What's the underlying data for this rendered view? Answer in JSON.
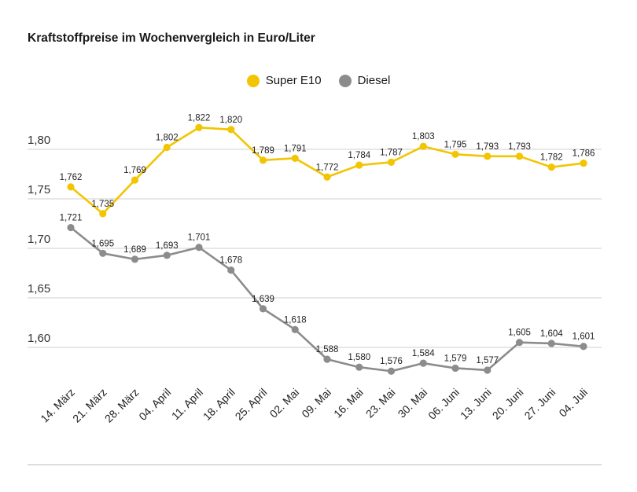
{
  "chart_data": {
    "type": "line",
    "title": "Kraftstoffpreise im Wochenvergleich in Euro/Liter",
    "xlabel": "",
    "ylabel": "",
    "ylim": [
      1.575,
      1.84
    ],
    "yticks": [
      "1,60",
      "1,65",
      "1,70",
      "1,75",
      "1,80"
    ],
    "ytick_values": [
      1.6,
      1.65,
      1.7,
      1.75,
      1.8
    ],
    "grid": true,
    "legend_position": "top-center",
    "categories": [
      "14. März",
      "21. März",
      "28. März",
      "04. April",
      "11. April",
      "18. April",
      "25. April",
      "02. Mai",
      "09. Mai",
      "16. Mai",
      "23. Mai",
      "30. Mai",
      "06. Juni",
      "13. Juni",
      "20. Juni",
      "27. Juni",
      "04. Juli"
    ],
    "series": [
      {
        "name": "Super E10",
        "color": "#f2c500",
        "values": [
          1.762,
          1.735,
          1.769,
          1.802,
          1.822,
          1.82,
          1.789,
          1.791,
          1.772,
          1.784,
          1.787,
          1.803,
          1.795,
          1.793,
          1.793,
          1.782,
          1.786
        ],
        "labels": [
          "1,762",
          "1,735",
          "1,769",
          "1,802",
          "1,822",
          "1,820",
          "1,789",
          "1,791",
          "1,772",
          "1,784",
          "1,787",
          "1,803",
          "1,795",
          "1,793",
          "1,793",
          "1,782",
          "1,786"
        ]
      },
      {
        "name": "Diesel",
        "color": "#8c8c8c",
        "values": [
          1.721,
          1.695,
          1.689,
          1.693,
          1.701,
          1.678,
          1.639,
          1.618,
          1.588,
          1.58,
          1.576,
          1.584,
          1.579,
          1.577,
          1.605,
          1.604,
          1.601
        ],
        "labels": [
          "1,721",
          "1,695",
          "1,689",
          "1,693",
          "1,701",
          "1,678",
          "1,639",
          "1,618",
          "1,588",
          "1,580",
          "1,576",
          "1,584",
          "1,579",
          "1,577",
          "1,605",
          "1,604",
          "1,601"
        ]
      }
    ]
  }
}
